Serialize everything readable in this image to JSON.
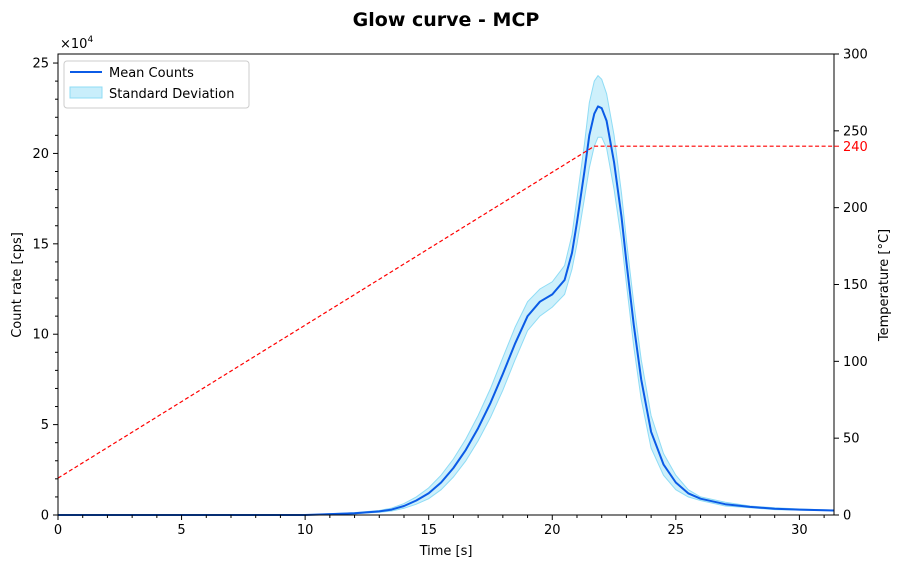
{
  "chart_data": {
    "type": "line",
    "title": "Glow curve - MCP",
    "xlabel": "Time [s]",
    "ylabel_left": "Count rate [cps]",
    "ylabel_right": "Temperature [°C]",
    "multiplier_label": "×10",
    "multiplier_exponent": "4",
    "xlim": [
      0,
      31.4
    ],
    "ylim_left": [
      0,
      255000
    ],
    "ylim_right": [
      0,
      300
    ],
    "x_ticks": [
      0,
      5,
      10,
      15,
      20,
      25,
      30
    ],
    "y_left_ticks": [
      0,
      50000,
      100000,
      150000,
      200000,
      250000
    ],
    "y_left_tick_labels": [
      "0",
      "5",
      "10",
      "15",
      "20",
      "25"
    ],
    "y_right_ticks": [
      0,
      50,
      100,
      150,
      200,
      250
    ],
    "temperature_plateau_label": "240",
    "legend": {
      "position": "top-left",
      "entries": [
        "Mean Counts",
        "Standard Deviation"
      ]
    },
    "colors": {
      "mean": "#0b5be6",
      "std_fill": "#c9eefb",
      "std_edge": "#8fdcf5",
      "temperature": "#ff0000",
      "plateau_label": "#ff0000"
    },
    "series": [
      {
        "name": "Mean Counts",
        "x": [
          0,
          5,
          10,
          11,
          12,
          13,
          13.5,
          14,
          14.5,
          15,
          15.5,
          16,
          16.5,
          17,
          17.5,
          18,
          18.5,
          19,
          19.5,
          20,
          20.5,
          20.8,
          21,
          21.3,
          21.5,
          21.7,
          21.85,
          22,
          22.2,
          22.5,
          22.8,
          23,
          23.3,
          23.6,
          24,
          24.5,
          25,
          25.5,
          26,
          27,
          28,
          29,
          30,
          31.4
        ],
        "y": [
          0,
          0,
          0,
          500,
          1000,
          2000,
          3000,
          5000,
          8000,
          12000,
          18000,
          26000,
          36000,
          48000,
          62000,
          78000,
          95000,
          110000,
          118000,
          122000,
          130000,
          145000,
          162000,
          190000,
          210000,
          222000,
          226000,
          225000,
          218000,
          195000,
          165000,
          140000,
          105000,
          75000,
          46000,
          28000,
          18000,
          12000,
          9000,
          6000,
          4500,
          3500,
          3000,
          2500
        ]
      },
      {
        "name": "Standard Deviation",
        "x": [
          0,
          5,
          10,
          11,
          12,
          13,
          13.5,
          14,
          14.5,
          15,
          15.5,
          16,
          16.5,
          17,
          17.5,
          18,
          18.5,
          19,
          19.5,
          20,
          20.5,
          20.8,
          21,
          21.3,
          21.5,
          21.7,
          21.85,
          22,
          22.2,
          22.5,
          22.8,
          23,
          23.3,
          23.6,
          24,
          24.5,
          25,
          25.5,
          26,
          27,
          28,
          29,
          30,
          31.4
        ],
        "upper": [
          0,
          0,
          0,
          700,
          1300,
          2500,
          3800,
          6300,
          10000,
          15000,
          22000,
          31000,
          42000,
          55000,
          70000,
          87000,
          104000,
          118000,
          125000,
          129000,
          138000,
          155000,
          175000,
          205000,
          228000,
          240000,
          243000,
          241000,
          233000,
          210000,
          178000,
          152000,
          117000,
          86000,
          55000,
          34000,
          22000,
          14000,
          10000,
          7000,
          5000,
          4000,
          3300,
          2700
        ],
        "lower": [
          0,
          0,
          0,
          300,
          700,
          1500,
          2200,
          3700,
          6000,
          9000,
          14000,
          21000,
          30000,
          41000,
          54000,
          69000,
          86000,
          102000,
          110000,
          115000,
          122000,
          136000,
          150000,
          175000,
          192000,
          204000,
          209000,
          209000,
          203000,
          180000,
          152000,
          128000,
          93000,
          64000,
          37000,
          22000,
          14000,
          10000,
          8000,
          5000,
          4000,
          3000,
          2700,
          2300
        ]
      },
      {
        "name": "Temperature",
        "axis": "right",
        "x": [
          0,
          21.7,
          31.4
        ],
        "y": [
          24,
          240,
          240
        ]
      }
    ]
  }
}
